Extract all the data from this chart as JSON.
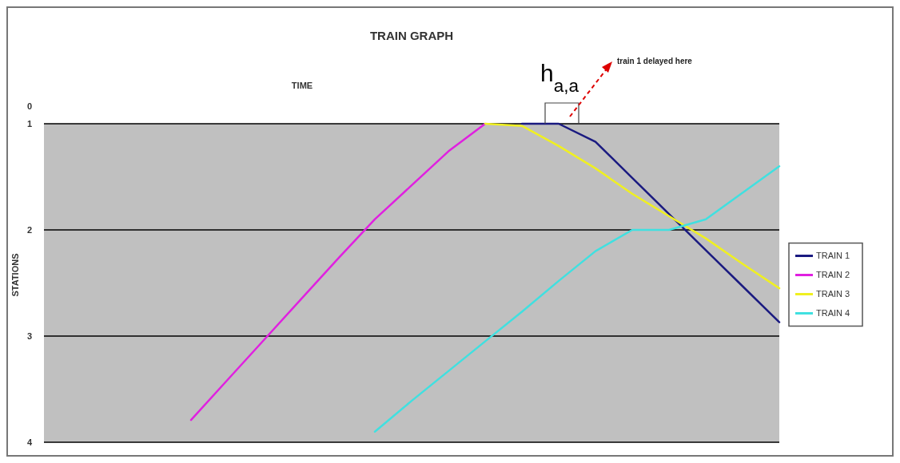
{
  "chart_data": {
    "type": "line",
    "title": "TRAIN GRAPH",
    "xlabel": "TIME",
    "ylabel": "STATIONS",
    "categories": [
      null,
      null,
      null,
      null,
      null,
      null,
      null,
      null,
      null,
      null,
      null,
      null,
      null,
      null,
      null,
      null,
      null,
      null,
      null,
      null,
      null
    ],
    "series": [
      {
        "name": "TRAIN 1",
        "color": "#1a1a80",
        "values": [
          null,
          null,
          null,
          null,
          null,
          null,
          null,
          null,
          null,
          null,
          null,
          null,
          null,
          1,
          1,
          1.17,
          1.51,
          1.85,
          2.19,
          2.53,
          2.87
        ]
      },
      {
        "name": "TRAIN 2",
        "color": "#e020e0",
        "values": [
          null,
          null,
          null,
          null,
          3.79,
          3.41,
          3.03,
          2.65,
          2.27,
          1.9,
          1.58,
          1.26,
          1,
          null,
          null,
          null,
          null,
          null,
          null,
          null,
          null
        ]
      },
      {
        "name": "TRAIN 3",
        "color": "#f0f020",
        "values": [
          null,
          null,
          null,
          null,
          null,
          null,
          null,
          null,
          null,
          null,
          null,
          null,
          1,
          1.02,
          1.21,
          1.42,
          1.66,
          1.87,
          2.08,
          2.32,
          2.55
        ]
      },
      {
        "name": "TRAIN 4",
        "color": "#40e0e0",
        "values": [
          null,
          null,
          null,
          null,
          null,
          null,
          null,
          null,
          null,
          3.9,
          3.61,
          3.33,
          3.05,
          2.77,
          2.48,
          2.2,
          2,
          2,
          1.9,
          1.65,
          1.4
        ]
      }
    ],
    "ylim": [
      4,
      1
    ],
    "yticks": [
      1,
      2,
      3,
      4
    ],
    "grid": "y",
    "legend": "right",
    "marker": "none",
    "line_style": "solid",
    "annotations": [
      "0",
      "h$_{a,a}$",
      "train 1 delayed here"
    ]
  }
}
